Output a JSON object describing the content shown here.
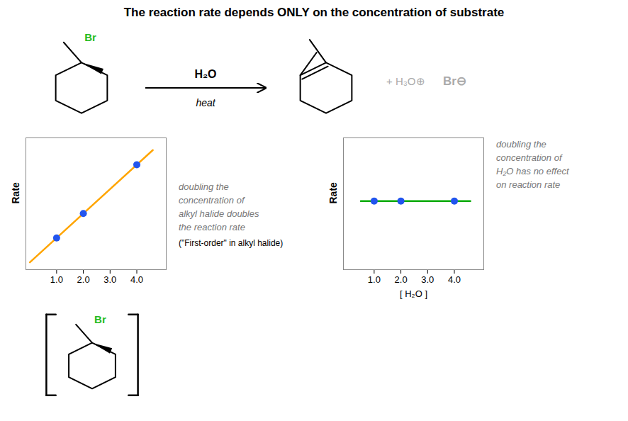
{
  "annotations": [
    "Br",
    "H₂O",
    "heat",
    "+ H₃O⊕",
    "Br⊖",
    "Br"
  ],
  "chart_data": [
    {
      "type": "line",
      "title": "The reaction rate depends ONLY on the concentration of substrate",
      "ylabel": "Rate",
      "xlim": [
        -0.15,
        5.1
      ],
      "ylim": [
        -0.3,
        5.1
      ],
      "xticks": [
        1,
        2,
        3,
        4
      ],
      "yticks": [],
      "tick_labels": "x",
      "annotations": [
        "doubling the",
        "concentration of",
        "alkyl halide doubles",
        "the reaction rate",
        "(\"First-order\" in alkyl halide)"
      ],
      "series": [
        {
          "type": "line",
          "color": "#FFA500",
          "x": [
            0.0,
            4.6
          ],
          "values": [
            0.0,
            4.6
          ]
        },
        {
          "type": "scatter",
          "color": "#2255ee",
          "x": [
            1,
            2,
            4
          ],
          "values": [
            1,
            2,
            4
          ]
        }
      ]
    },
    {
      "type": "line",
      "ylabel": "Rate",
      "xlabel": "[ H₂O ]",
      "xlim": [
        -0.15,
        5.1
      ],
      "ylim": [
        -0.3,
        4.5
      ],
      "xticks": [
        1,
        2,
        3,
        4
      ],
      "yticks": [],
      "tick_labels": "x",
      "annotations": [
        "doubling the",
        "concentration of",
        "H₂O has no effect",
        "on reaction rate"
      ],
      "series": [
        {
          "type": "line",
          "color": "#00aa00",
          "x": [
            0.5,
            4.6
          ],
          "values": [
            2.2,
            2.2
          ]
        },
        {
          "type": "scatter",
          "color": "#2255ee",
          "x": [
            1,
            2,
            4
          ],
          "values": [
            2.2,
            2.2,
            2.2
          ]
        }
      ]
    }
  ]
}
